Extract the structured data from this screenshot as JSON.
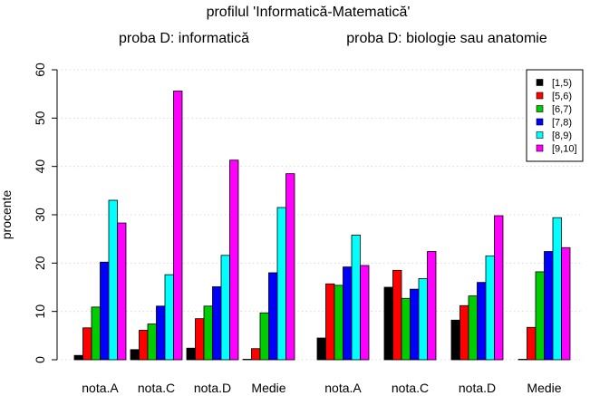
{
  "title": "profilul 'Informatică-Matematică'",
  "ylabel": "procente",
  "chart_data": {
    "type": "bar",
    "yticks": [
      0,
      10,
      20,
      30,
      40,
      50,
      60
    ],
    "ylim": [
      0,
      60
    ],
    "grid": true,
    "legend_position": "top-right",
    "categories": [
      "nota.A",
      "nota.C",
      "nota.D",
      "Medie"
    ],
    "series": [
      {
        "name": "[1,5)",
        "color": "#000000"
      },
      {
        "name": "[5,6)",
        "color": "#ff0000"
      },
      {
        "name": "[6,7)",
        "color": "#00cd00"
      },
      {
        "name": "[7,8)",
        "color": "#0000ff"
      },
      {
        "name": "[8,9)",
        "color": "#00ffff"
      },
      {
        "name": "[9,10]",
        "color": "#ff00ff"
      }
    ],
    "panels": [
      {
        "subtitle": "proba D: informatică",
        "values": [
          [
            0.9,
            6.6,
            10.9,
            20.2,
            33.0,
            28.3
          ],
          [
            2.1,
            6.1,
            7.4,
            11.1,
            17.6,
            55.6
          ],
          [
            2.4,
            8.5,
            11.1,
            15.1,
            21.6,
            41.3
          ],
          [
            0.1,
            2.3,
            9.7,
            18.0,
            31.5,
            38.5
          ]
        ]
      },
      {
        "subtitle": "proba D: biologie sau anatomie",
        "values": [
          [
            4.5,
            15.7,
            15.4,
            19.2,
            25.8,
            19.5
          ],
          [
            15.0,
            18.5,
            12.7,
            14.6,
            16.8,
            22.4
          ],
          [
            8.2,
            11.2,
            13.2,
            16.0,
            21.5,
            29.8
          ],
          [
            0.1,
            6.7,
            18.2,
            22.4,
            29.4,
            23.2
          ]
        ]
      }
    ]
  }
}
